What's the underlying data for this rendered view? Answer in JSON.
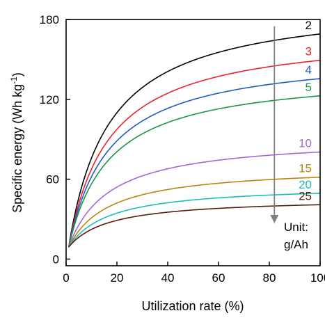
{
  "chart_data": {
    "type": "line",
    "title": "",
    "xlabel": "Utilization rate (%)",
    "ylabel_main": "Specific energy (Wh kg",
    "ylabel_sup": "-1",
    "ylabel_tail": ")",
    "xlim": [
      0,
      100
    ],
    "ylim": [
      -5,
      180
    ],
    "x_ticks": [
      0,
      20,
      40,
      60,
      80,
      100
    ],
    "y_ticks": [
      0,
      60,
      120,
      180
    ],
    "grid": false,
    "legend": "none",
    "series": [
      {
        "name": "2",
        "color": "#000000",
        "limit": 195
      },
      {
        "name": "3",
        "color": "#e8252a",
        "limit": 172
      },
      {
        "name": "4",
        "color": "#1f5bc6",
        "limit": 156
      },
      {
        "name": "5",
        "color": "#1a9447",
        "limit": 141
      },
      {
        "name": "10",
        "color": "#a268d8",
        "limit": 92
      },
      {
        "name": "15",
        "color": "#b8860b",
        "limit": 70
      },
      {
        "name": "20",
        "color": "#1fbcbc",
        "limit": 56
      },
      {
        "name": "25",
        "color": "#5a1a10",
        "limit": 46
      }
    ],
    "series_start": {
      "x": 1,
      "y": 9
    },
    "curve_half_saturation": 16,
    "trend_arrow": {
      "x": 82,
      "y_from": 175,
      "y_to": 30,
      "color": "#808080"
    },
    "unit_text": [
      "Unit:",
      "g/Ah"
    ]
  }
}
